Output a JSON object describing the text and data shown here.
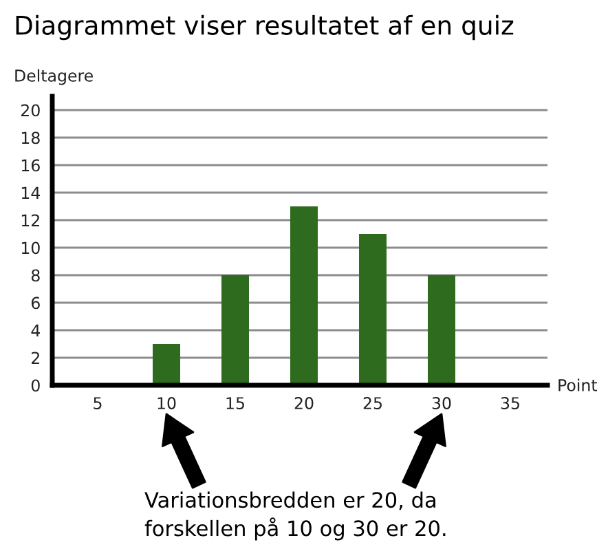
{
  "chart_data": {
    "type": "bar",
    "title": "Diagrammet viser resultatet af en quiz",
    "xlabel": "Point",
    "ylabel": "Deltagere",
    "categories": [
      "5",
      "10",
      "15",
      "20",
      "25",
      "30",
      "35"
    ],
    "values": [
      0,
      3,
      8,
      13,
      11,
      8,
      0
    ],
    "color": "#2e6b1f",
    "ylim": [
      0,
      21
    ],
    "yticks": [
      0,
      2,
      4,
      6,
      8,
      10,
      12,
      14,
      16,
      18,
      20
    ],
    "grid": "y",
    "annotations": [
      "Variationsbredden er 20, da\nforskellen på 10 og 30 er 20."
    ]
  }
}
